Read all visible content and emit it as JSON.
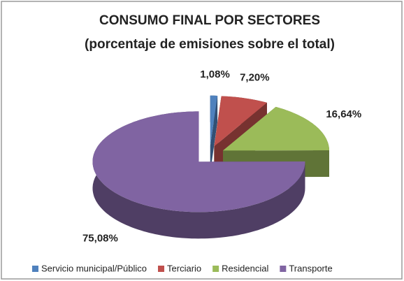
{
  "chart_data": {
    "type": "pie",
    "title": "CONSUMO FINAL POR SECTORES",
    "subtitle": "(porcentaje de emisiones sobre el total)",
    "categories": [
      "Servicio municipal/Público",
      "Terciario",
      "Residencial",
      "Transporte"
    ],
    "values": [
      1.08,
      7.2,
      16.64,
      75.08
    ],
    "value_labels": [
      "1,08%",
      "7,20%",
      "16,64%",
      "75,08%"
    ],
    "colors": [
      "#4f81bd",
      "#c0504d",
      "#9bbb59",
      "#8064a2"
    ],
    "legend": "bottom"
  }
}
